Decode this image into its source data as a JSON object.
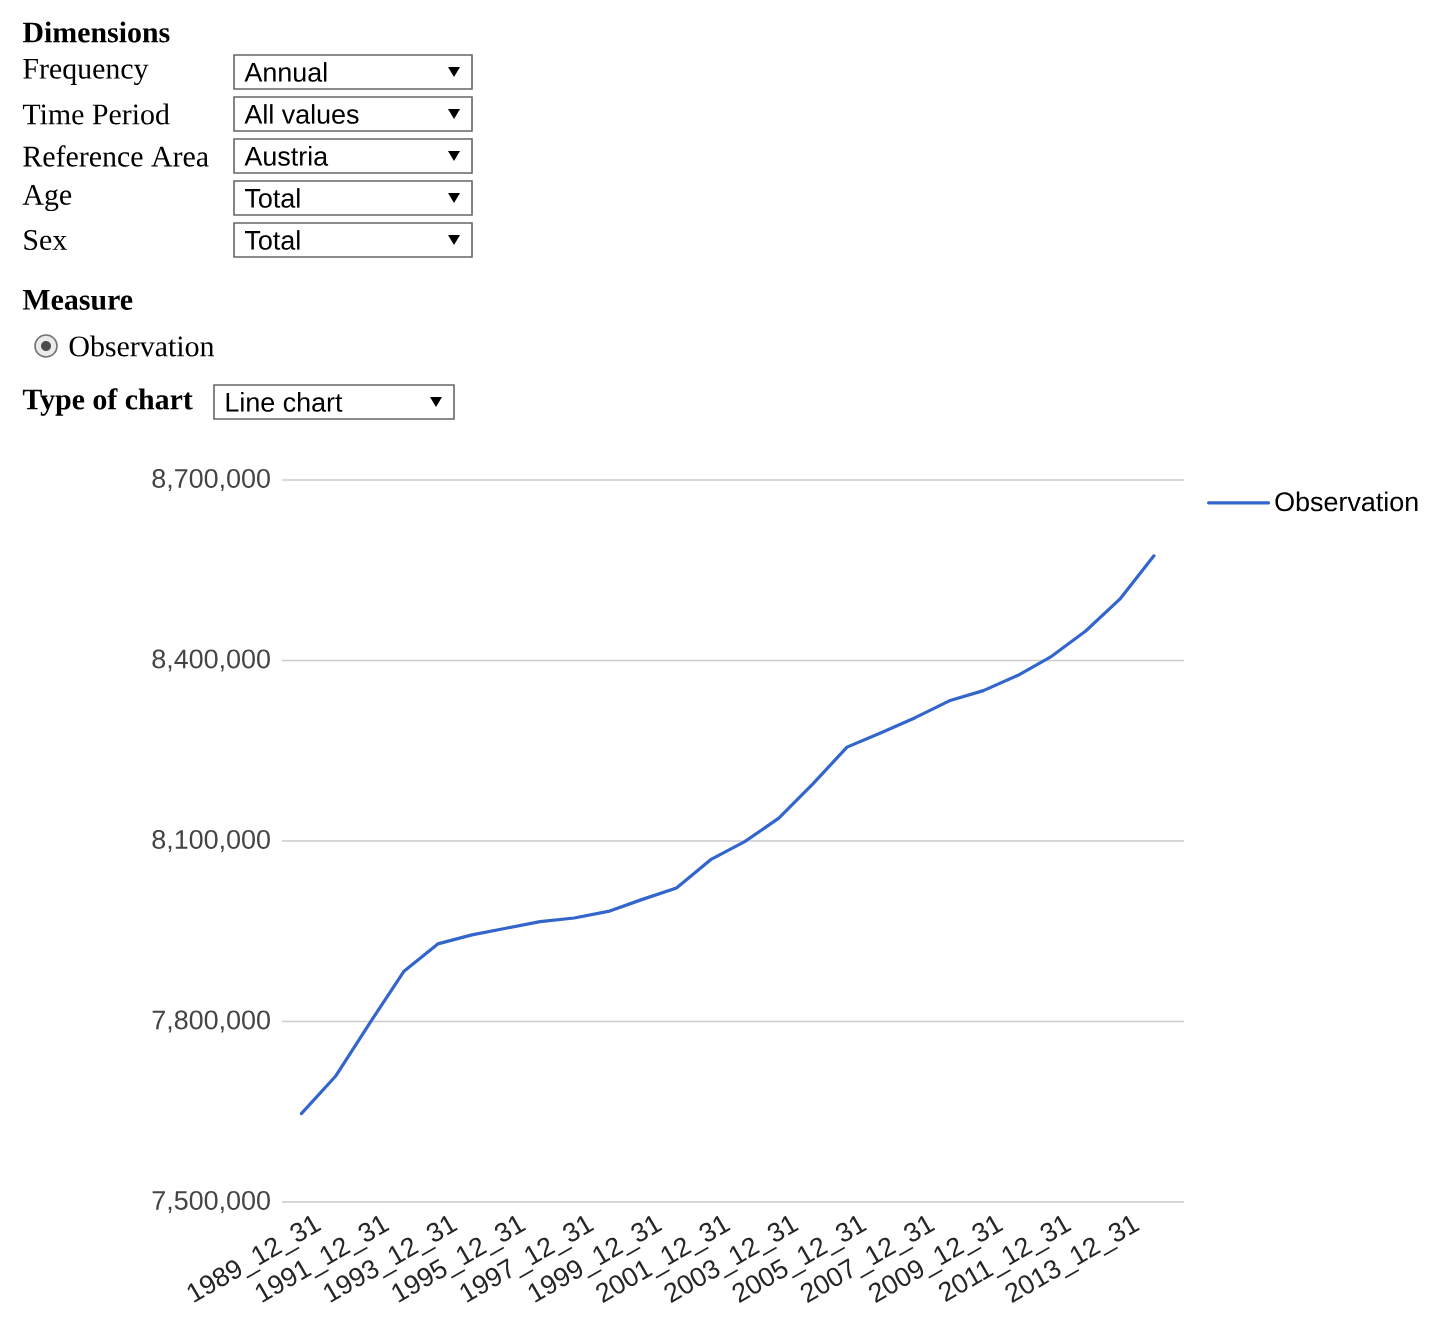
{
  "chart_data": {
    "type": "line",
    "categories": [
      "1989_12_31",
      null,
      "1991_12_31",
      null,
      "1993_12_31",
      null,
      "1995_12_31",
      null,
      "1997_12_31",
      null,
      "1999_12_31",
      null,
      "2001_12_31",
      null,
      "2003_12_31",
      null,
      "2005_12_31",
      null,
      "2007_12_31",
      null,
      "2009_12_31",
      null,
      "2011_12_31",
      null,
      "2013_12_31",
      null
    ],
    "series": [
      {
        "name": "Observation",
        "color": "#3366cc",
        "values": [
          7647000,
          7709000,
          7797000,
          7883000,
          7929000,
          7944000,
          7955000,
          7966000,
          7972000,
          7983000,
          8003000,
          8022000,
          8069000,
          8099000,
          8138000,
          8195000,
          8256000,
          8280000,
          8305000,
          8333000,
          8350000,
          8375000,
          8407000,
          8449000,
          8502000,
          8574000
        ]
      }
    ],
    "ylim": [
      7500000,
      8700000
    ],
    "yticks": [
      {
        "value": 7500000,
        "label": "7,500,000"
      },
      {
        "value": 7800000,
        "label": "7,800,000"
      },
      {
        "value": 8100000,
        "label": "8,100,000"
      },
      {
        "value": 8400000,
        "label": "8,400,000"
      },
      {
        "value": 8700000,
        "label": "8,700,000"
      }
    ],
    "grid": "y",
    "legend": "top right",
    "annotations": [
      "Dimensions",
      "Frequency",
      "Annual",
      "Time Period",
      "All values",
      "Reference Area",
      "Austria",
      "Age",
      "Total",
      "Sex",
      "Total",
      "Measure",
      "Observation",
      "Type of chart",
      "Line chart"
    ]
  }
}
